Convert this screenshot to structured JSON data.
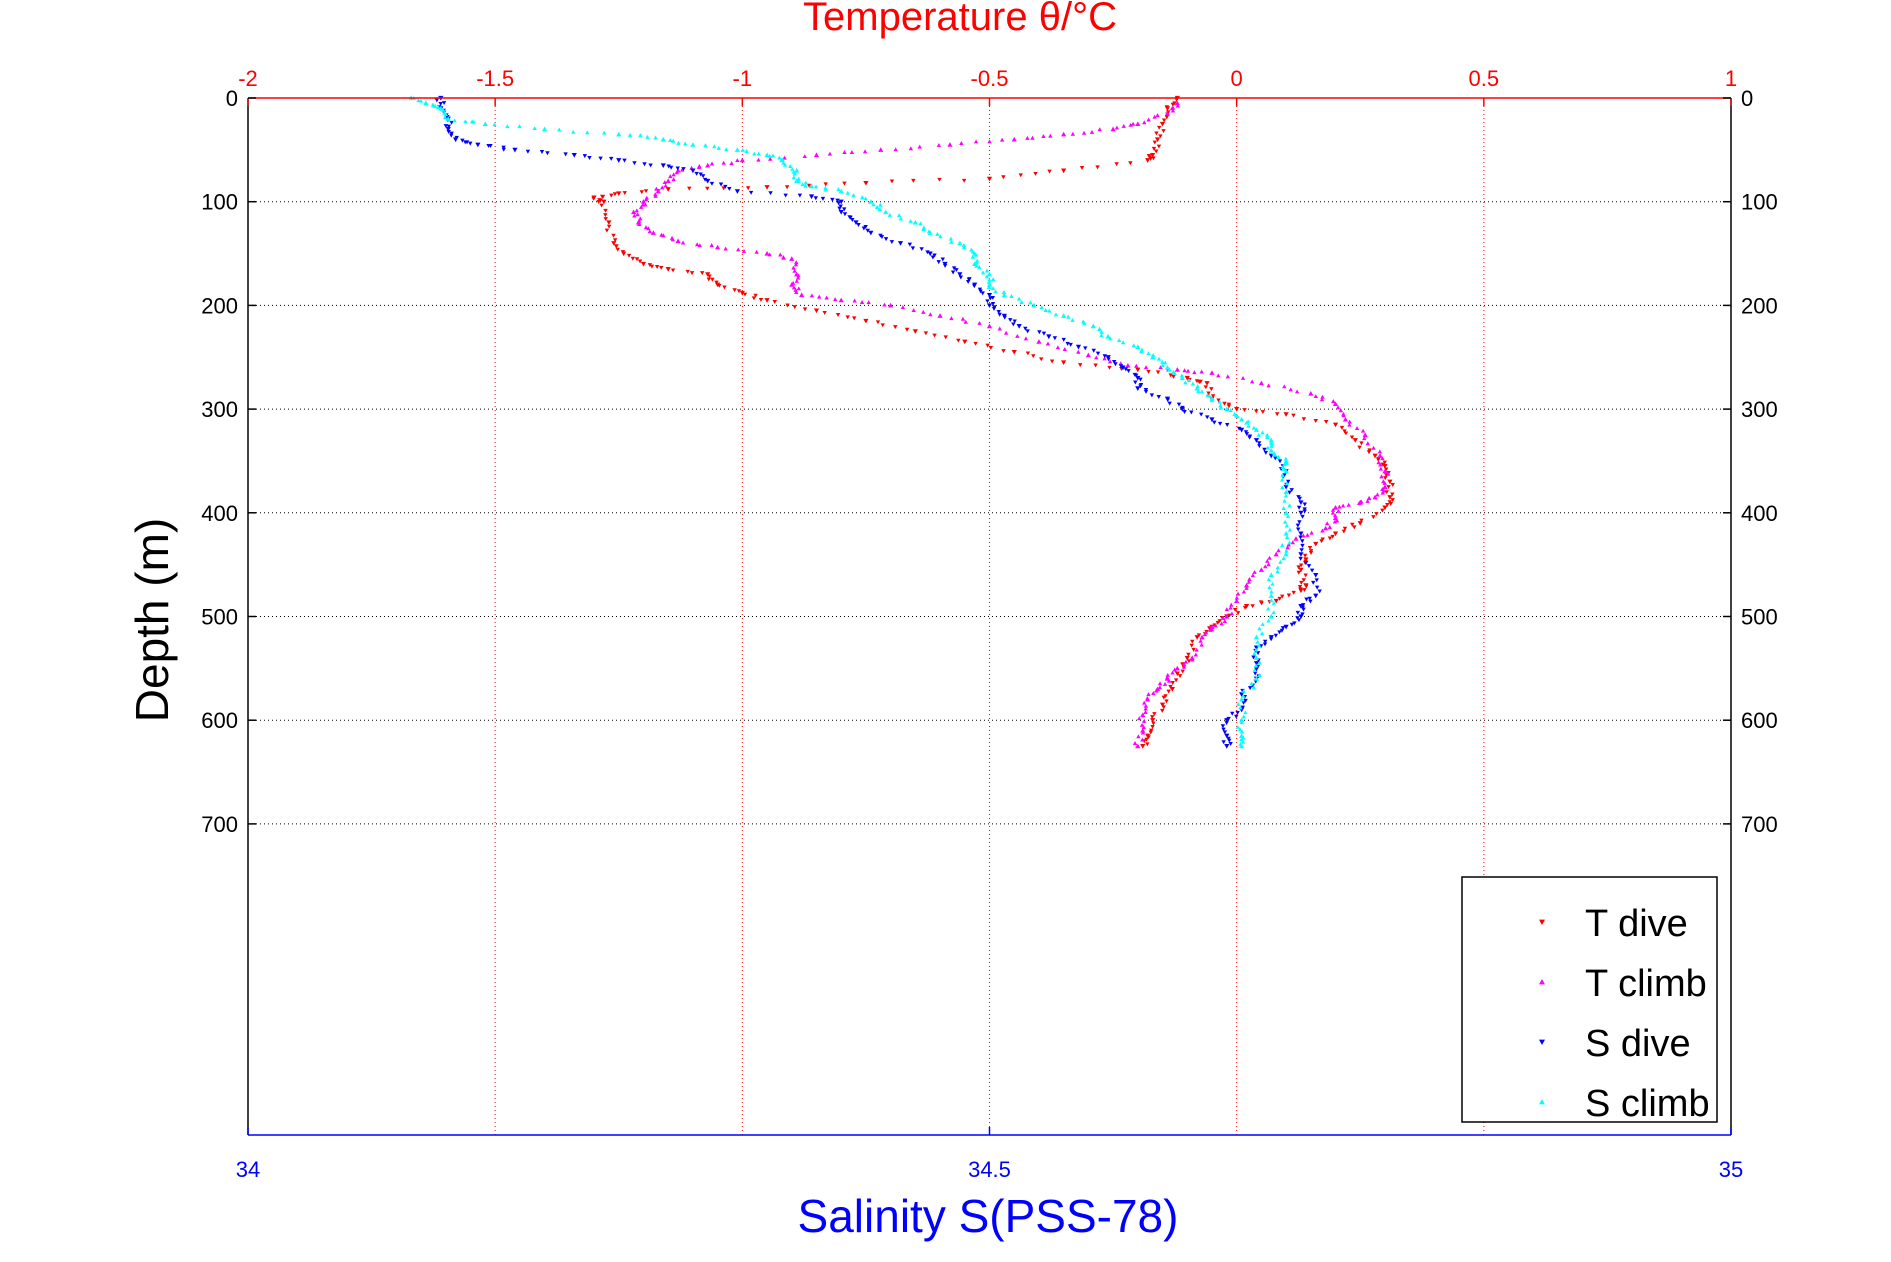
{
  "chart_data": {
    "type": "scatter",
    "title_top": "Temperature θ/°C",
    "xlabel": "Salinity S(PSS-78)",
    "ylabel": "Depth (m)",
    "x_top": {
      "lim": [
        -2,
        1
      ],
      "ticks": [
        "-2",
        "-1.5",
        "-1",
        "-0.5",
        "0",
        "0.5",
        "1"
      ],
      "tick_values": [
        -2,
        -1.5,
        -1,
        -0.5,
        0,
        0.5,
        1
      ],
      "color": "#ff0000"
    },
    "x_bottom": {
      "lim": [
        34,
        35
      ],
      "ticks": [
        "34",
        "34.5",
        "35"
      ],
      "tick_values": [
        34,
        34.5,
        35
      ],
      "color": "#0000ff"
    },
    "y": {
      "lim": [
        0,
        1000
      ],
      "reversed": true,
      "ticks": [
        "0",
        "100",
        "200",
        "300",
        "400",
        "500",
        "600",
        "700"
      ],
      "tick_values": [
        0,
        100,
        200,
        300,
        400,
        500,
        600,
        700
      ]
    },
    "grid": true,
    "legend_position": "bottom-right",
    "series": [
      {
        "name": "T dive",
        "axis": "top",
        "marker": "triangle-down",
        "color": "#ff0000",
        "points": [
          [
            -0.12,
            0
          ],
          [
            -0.14,
            10
          ],
          [
            -0.15,
            25
          ],
          [
            -0.16,
            40
          ],
          [
            -0.17,
            55
          ],
          [
            -0.18,
            60
          ],
          [
            -0.35,
            70
          ],
          [
            -0.5,
            78
          ],
          [
            -0.75,
            82
          ],
          [
            -0.95,
            86
          ],
          [
            -1.15,
            88
          ],
          [
            -1.25,
            92
          ],
          [
            -1.3,
            96
          ],
          [
            -1.28,
            100
          ],
          [
            -1.27,
            120
          ],
          [
            -1.26,
            140
          ],
          [
            -1.24,
            150
          ],
          [
            -1.2,
            160
          ],
          [
            -1.15,
            165
          ],
          [
            -1.07,
            170
          ],
          [
            -1.05,
            180
          ],
          [
            -1.0,
            188
          ],
          [
            -0.95,
            195
          ],
          [
            -0.85,
            205
          ],
          [
            -0.75,
            215
          ],
          [
            -0.65,
            225
          ],
          [
            -0.55,
            235
          ],
          [
            -0.45,
            245
          ],
          [
            -0.35,
            255
          ],
          [
            -0.2,
            262
          ],
          [
            -0.1,
            270
          ],
          [
            -0.06,
            275
          ],
          [
            -0.05,
            290
          ],
          [
            0.0,
            300
          ],
          [
            0.1,
            305
          ],
          [
            0.2,
            315
          ],
          [
            0.24,
            330
          ],
          [
            0.28,
            345
          ],
          [
            0.3,
            355
          ],
          [
            0.31,
            370
          ],
          [
            0.31,
            385
          ],
          [
            0.3,
            395
          ],
          [
            0.25,
            410
          ],
          [
            0.2,
            420
          ],
          [
            0.16,
            430
          ],
          [
            0.14,
            445
          ],
          [
            0.13,
            455
          ],
          [
            0.14,
            470
          ],
          [
            0.13,
            475
          ],
          [
            0.08,
            485
          ],
          [
            0.02,
            490
          ],
          [
            -0.02,
            500
          ],
          [
            -0.05,
            510
          ],
          [
            -0.08,
            520
          ],
          [
            -0.1,
            540
          ],
          [
            -0.12,
            555
          ],
          [
            -0.13,
            570
          ],
          [
            -0.15,
            585
          ],
          [
            -0.17,
            600
          ],
          [
            -0.18,
            615
          ],
          [
            -0.19,
            625
          ]
        ]
      },
      {
        "name": "T climb",
        "axis": "top",
        "marker": "triangle-up",
        "color": "#ff00ff",
        "points": [
          [
            -0.12,
            5
          ],
          [
            -0.14,
            15
          ],
          [
            -0.2,
            25
          ],
          [
            -0.25,
            30
          ],
          [
            -0.35,
            35
          ],
          [
            -0.45,
            40
          ],
          [
            -0.58,
            45
          ],
          [
            -0.72,
            50
          ],
          [
            -0.85,
            55
          ],
          [
            -1.0,
            60
          ],
          [
            -1.07,
            65
          ],
          [
            -1.13,
            70
          ],
          [
            -1.15,
            80
          ],
          [
            -1.17,
            90
          ],
          [
            -1.2,
            100
          ],
          [
            -1.22,
            110
          ],
          [
            -1.21,
            120
          ],
          [
            -1.18,
            130
          ],
          [
            -1.13,
            138
          ],
          [
            -1.05,
            144
          ],
          [
            -0.95,
            150
          ],
          [
            -0.9,
            155
          ],
          [
            -0.89,
            170
          ],
          [
            -0.9,
            180
          ],
          [
            -0.88,
            190
          ],
          [
            -0.8,
            195
          ],
          [
            -0.7,
            200
          ],
          [
            -0.6,
            210
          ],
          [
            -0.5,
            220
          ],
          [
            -0.4,
            235
          ],
          [
            -0.3,
            248
          ],
          [
            -0.22,
            258
          ],
          [
            -0.12,
            262
          ],
          [
            -0.05,
            265
          ],
          [
            0.05,
            275
          ],
          [
            0.15,
            285
          ],
          [
            0.2,
            295
          ],
          [
            0.22,
            310
          ],
          [
            0.26,
            325
          ],
          [
            0.29,
            345
          ],
          [
            0.3,
            360
          ],
          [
            0.3,
            375
          ],
          [
            0.28,
            385
          ],
          [
            0.25,
            390
          ],
          [
            0.2,
            395
          ],
          [
            0.2,
            405
          ],
          [
            0.18,
            415
          ],
          [
            0.12,
            425
          ],
          [
            0.08,
            440
          ],
          [
            0.05,
            455
          ],
          [
            0.02,
            470
          ],
          [
            0.0,
            485
          ],
          [
            -0.02,
            500
          ],
          [
            -0.05,
            510
          ],
          [
            -0.07,
            520
          ],
          [
            -0.09,
            540
          ],
          [
            -0.12,
            550
          ],
          [
            -0.14,
            560
          ],
          [
            -0.16,
            570
          ],
          [
            -0.18,
            580
          ],
          [
            -0.19,
            595
          ],
          [
            -0.19,
            610
          ],
          [
            -0.2,
            625
          ]
        ]
      },
      {
        "name": "S dive",
        "axis": "bottom",
        "marker": "triangle-down",
        "color": "#0000ff",
        "points": [
          [
            34.13,
            0
          ],
          [
            34.13,
            10
          ],
          [
            34.135,
            20
          ],
          [
            34.135,
            30
          ],
          [
            34.14,
            40
          ],
          [
            34.155,
            45
          ],
          [
            34.18,
            50
          ],
          [
            34.22,
            55
          ],
          [
            34.25,
            60
          ],
          [
            34.28,
            65
          ],
          [
            34.3,
            70
          ],
          [
            34.31,
            80
          ],
          [
            34.33,
            90
          ],
          [
            34.38,
            95
          ],
          [
            34.4,
            100
          ],
          [
            34.4,
            110
          ],
          [
            34.41,
            120
          ],
          [
            34.42,
            130
          ],
          [
            34.44,
            140
          ],
          [
            34.46,
            150
          ],
          [
            34.47,
            160
          ],
          [
            34.48,
            170
          ],
          [
            34.49,
            180
          ],
          [
            34.5,
            190
          ],
          [
            34.5,
            200
          ],
          [
            34.51,
            210
          ],
          [
            34.52,
            220
          ],
          [
            34.54,
            230
          ],
          [
            34.56,
            240
          ],
          [
            34.58,
            250
          ],
          [
            34.59,
            260
          ],
          [
            34.6,
            270
          ],
          [
            34.6,
            280
          ],
          [
            34.62,
            290
          ],
          [
            34.63,
            300
          ],
          [
            34.65,
            310
          ],
          [
            34.67,
            320
          ],
          [
            34.68,
            330
          ],
          [
            34.69,
            345
          ],
          [
            34.7,
            360
          ],
          [
            34.7,
            375
          ],
          [
            34.71,
            390
          ],
          [
            34.71,
            400
          ],
          [
            34.71,
            420
          ],
          [
            34.71,
            440
          ],
          [
            34.72,
            460
          ],
          [
            34.72,
            480
          ],
          [
            34.71,
            490
          ],
          [
            34.71,
            500
          ],
          [
            34.7,
            510
          ],
          [
            34.69,
            520
          ],
          [
            34.68,
            530
          ],
          [
            34.68,
            545
          ],
          [
            34.68,
            560
          ],
          [
            34.67,
            575
          ],
          [
            34.67,
            590
          ],
          [
            34.66,
            600
          ],
          [
            34.66,
            615
          ],
          [
            34.66,
            625
          ]
        ]
      },
      {
        "name": "S climb",
        "axis": "bottom",
        "marker": "triangle-up",
        "color": "#00ffff",
        "points": [
          [
            34.11,
            0
          ],
          [
            34.12,
            5
          ],
          [
            34.13,
            10
          ],
          [
            34.135,
            20
          ],
          [
            34.16,
            25
          ],
          [
            34.2,
            30
          ],
          [
            34.25,
            35
          ],
          [
            34.28,
            40
          ],
          [
            34.3,
            45
          ],
          [
            34.33,
            50
          ],
          [
            34.35,
            55
          ],
          [
            34.36,
            60
          ],
          [
            34.37,
            70
          ],
          [
            34.37,
            80
          ],
          [
            34.38,
            85
          ],
          [
            34.4,
            90
          ],
          [
            34.42,
            100
          ],
          [
            34.43,
            110
          ],
          [
            34.45,
            120
          ],
          [
            34.46,
            130
          ],
          [
            34.48,
            140
          ],
          [
            34.49,
            150
          ],
          [
            34.49,
            160
          ],
          [
            34.5,
            170
          ],
          [
            34.5,
            180
          ],
          [
            34.51,
            190
          ],
          [
            34.53,
            200
          ],
          [
            34.55,
            210
          ],
          [
            34.57,
            220
          ],
          [
            34.58,
            230
          ],
          [
            34.6,
            240
          ],
          [
            34.61,
            250
          ],
          [
            34.62,
            260
          ],
          [
            34.63,
            270
          ],
          [
            34.64,
            280
          ],
          [
            34.65,
            290
          ],
          [
            34.66,
            300
          ],
          [
            34.67,
            310
          ],
          [
            34.68,
            320
          ],
          [
            34.69,
            330
          ],
          [
            34.69,
            340
          ],
          [
            34.7,
            350
          ],
          [
            34.7,
            360
          ],
          [
            34.7,
            380
          ],
          [
            34.7,
            400
          ],
          [
            34.7,
            420
          ],
          [
            34.7,
            440
          ],
          [
            34.69,
            460
          ],
          [
            34.69,
            480
          ],
          [
            34.69,
            500
          ],
          [
            34.68,
            520
          ],
          [
            34.68,
            540
          ],
          [
            34.68,
            560
          ],
          [
            34.67,
            580
          ],
          [
            34.67,
            600
          ],
          [
            34.67,
            615
          ],
          [
            34.67,
            625
          ]
        ]
      }
    ]
  }
}
